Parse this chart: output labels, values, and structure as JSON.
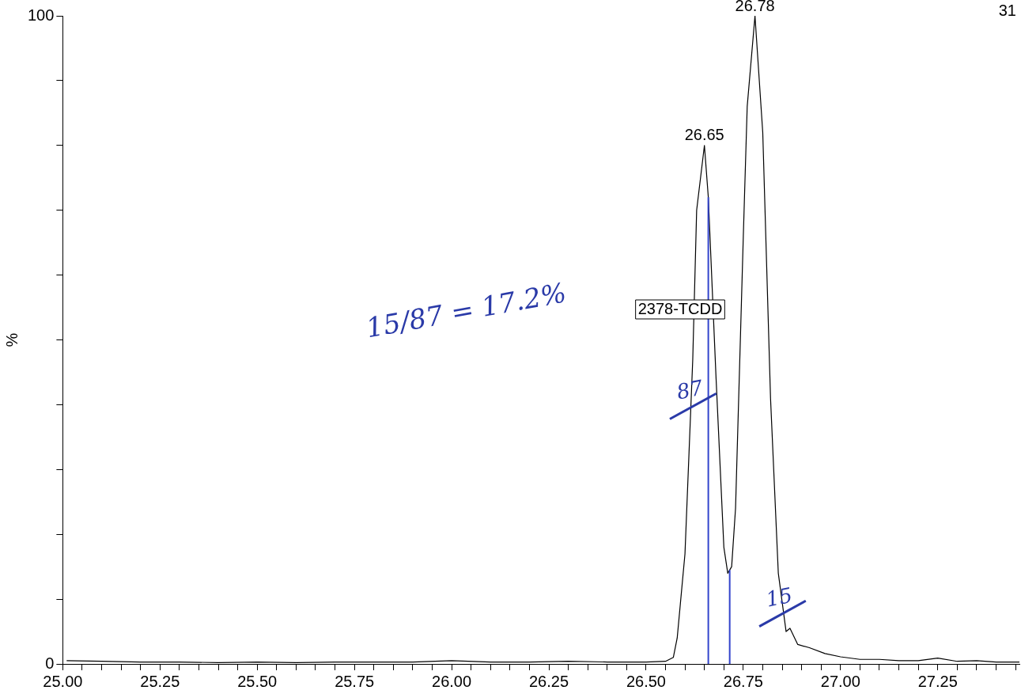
{
  "chart_data": {
    "type": "line",
    "ylabel": "%",
    "x": [
      25.01,
      25.1,
      25.2,
      25.3,
      25.4,
      25.5,
      25.6,
      25.7,
      25.8,
      25.9,
      26.0,
      26.1,
      26.2,
      26.3,
      26.4,
      26.5,
      26.55,
      26.57,
      26.58,
      26.6,
      26.62,
      26.63,
      26.65,
      26.66,
      26.68,
      26.7,
      26.71,
      26.72,
      26.73,
      26.75,
      26.76,
      26.78,
      26.8,
      26.82,
      26.84,
      26.86,
      26.87,
      26.89,
      26.92,
      26.96,
      27.0,
      27.05,
      27.1,
      27.15,
      27.2,
      27.25,
      27.3,
      27.35,
      27.4,
      27.46
    ],
    "series": [
      {
        "color": "#000000",
        "values": [
          0.5,
          0.4,
          0.3,
          0.3,
          0.2,
          0.3,
          0.2,
          0.3,
          0.3,
          0.3,
          0.5,
          0.3,
          0.3,
          0.4,
          0.3,
          0.3,
          0.4,
          1,
          4,
          17,
          47,
          70,
          80,
          72,
          44,
          18,
          14,
          15,
          24,
          66,
          86,
          100,
          82,
          41,
          14,
          5,
          5.5,
          3,
          2.5,
          1.6,
          1.1,
          0.7,
          0.7,
          0.5,
          0.5,
          0.9,
          0.4,
          0.5,
          0.3,
          0.3
        ]
      }
    ],
    "xlim": [
      25.0,
      27.46
    ],
    "xticks": [
      {
        "value": 25,
        "label": "25.00"
      },
      {
        "value": 25.05,
        "label": null
      },
      {
        "value": 25.1,
        "label": null
      },
      {
        "value": 25.15,
        "label": null
      },
      {
        "value": 25.2,
        "label": null
      },
      {
        "value": 25.25,
        "label": "25.25"
      },
      {
        "value": 25.3,
        "label": null
      },
      {
        "value": 25.35,
        "label": null
      },
      {
        "value": 25.4,
        "label": null
      },
      {
        "value": 25.45,
        "label": null
      },
      {
        "value": 25.5,
        "label": "25.50"
      },
      {
        "value": 25.55,
        "label": null
      },
      {
        "value": 25.6,
        "label": null
      },
      {
        "value": 25.65,
        "label": null
      },
      {
        "value": 25.7,
        "label": null
      },
      {
        "value": 25.75,
        "label": "25.75"
      },
      {
        "value": 25.8,
        "label": null
      },
      {
        "value": 25.85,
        "label": null
      },
      {
        "value": 25.9,
        "label": null
      },
      {
        "value": 25.95,
        "label": null
      },
      {
        "value": 26.0,
        "label": "26.00"
      },
      {
        "value": 26.05,
        "label": null
      },
      {
        "value": 26.1,
        "label": null
      },
      {
        "value": 26.15,
        "label": null
      },
      {
        "value": 26.2,
        "label": null
      },
      {
        "value": 26.25,
        "label": "26.25"
      },
      {
        "value": 26.3,
        "label": null
      },
      {
        "value": 26.35,
        "label": null
      },
      {
        "value": 26.4,
        "label": null
      },
      {
        "value": 26.45,
        "label": null
      },
      {
        "value": 26.5,
        "label": "26.50"
      },
      {
        "value": 26.55,
        "label": null
      },
      {
        "value": 26.6,
        "label": null
      },
      {
        "value": 26.65,
        "label": null
      },
      {
        "value": 26.7,
        "label": null
      },
      {
        "value": 26.75,
        "label": "26.75"
      },
      {
        "value": 26.8,
        "label": null
      },
      {
        "value": 26.85,
        "label": null
      },
      {
        "value": 26.9,
        "label": null
      },
      {
        "value": 26.95,
        "label": null
      },
      {
        "value": 27.0,
        "label": "27.00"
      },
      {
        "value": 27.05,
        "label": null
      },
      {
        "value": 27.1,
        "label": null
      },
      {
        "value": 27.15,
        "label": null
      },
      {
        "value": 27.2,
        "label": null
      },
      {
        "value": 27.25,
        "label": "27.25"
      },
      {
        "value": 27.3,
        "label": null
      },
      {
        "value": 27.35,
        "label": null
      },
      {
        "value": 27.4,
        "label": null
      },
      {
        "value": 27.45,
        "label": null
      }
    ],
    "ylim": [
      0,
      100
    ],
    "yticks": [
      0,
      {
        "value": 10,
        "label": null
      },
      {
        "value": 20,
        "label": null
      },
      {
        "value": 30,
        "label": null
      },
      {
        "value": 40,
        "label": null
      },
      {
        "value": 50,
        "label": null
      },
      {
        "value": 60,
        "label": null
      },
      {
        "value": 70,
        "label": null
      },
      {
        "value": 80,
        "label": null
      },
      {
        "value": 90,
        "label": null
      },
      100
    ],
    "ref_lines": [
      {
        "axis": "x",
        "value": 26.66,
        "color": "#3344cc"
      },
      {
        "axis": "x",
        "value": 26.715,
        "color": "#3344cc"
      }
    ],
    "annotations": [
      {
        "text": "26.78",
        "x": 26.78,
        "y": 100
      },
      {
        "text": "26.65",
        "x": 26.65,
        "y": 80
      },
      "2378-TCDD",
      {
        "text": "87",
        "x": 26.62,
        "y": 40
      },
      {
        "text": "15",
        "x": 26.85,
        "y": 8
      },
      "15/87 = 17.2%",
      "31"
    ],
    "grid": false,
    "legend": false,
    "marker": "none",
    "line_style": "solid"
  }
}
